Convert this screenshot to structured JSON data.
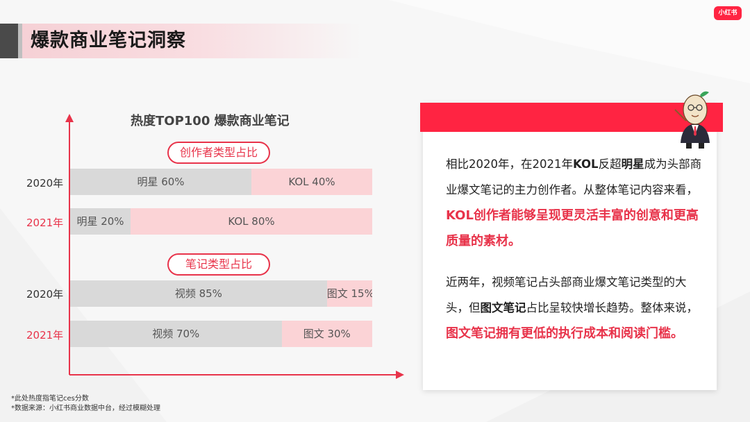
{
  "brand": {
    "logo_text": "小红书",
    "accent": "#ff2442"
  },
  "page_title": "爆款商业笔记洞察",
  "chart_data": {
    "type": "bar",
    "title": "热度TOP100 爆款商业笔记",
    "groups": [
      {
        "label": "创作者类型占比",
        "rows": [
          {
            "year": "2020年",
            "segments": [
              {
                "name": "明星",
                "value": 60,
                "label": "明星 60%"
              },
              {
                "name": "KOL",
                "value": 40,
                "label": "KOL 40%"
              }
            ]
          },
          {
            "year": "2021年",
            "segments": [
              {
                "name": "明星",
                "value": 20,
                "label": "明星 20%"
              },
              {
                "name": "KOL",
                "value": 80,
                "label": "KOL 80%"
              }
            ]
          }
        ]
      },
      {
        "label": "笔记类型占比",
        "rows": [
          {
            "year": "2020年",
            "segments": [
              {
                "name": "视频",
                "value": 85,
                "label": "视频 85%"
              },
              {
                "name": "图文",
                "value": 15,
                "label": "图文 15%"
              }
            ]
          },
          {
            "year": "2021年",
            "segments": [
              {
                "name": "视频",
                "value": 70,
                "label": "视频 70%"
              },
              {
                "name": "图文",
                "value": 30,
                "label": "图文 30%"
              }
            ]
          }
        ]
      }
    ],
    "colors": {
      "first": "#d9d9d9",
      "second": "#fbd3d6",
      "axis": "#e8334a"
    }
  },
  "footnotes": {
    "line1": "*此处热度指笔记ces分数",
    "line2": "*数据来源：小红书商业数据中台，经过模糊处理"
  },
  "insight": {
    "p1": {
      "a": "相比2020年，在2021年",
      "b": "KOL",
      "c": "反超",
      "d": "明星",
      "e": "成为头部商业爆文笔记的主力创作者。从整体笔记内容来看，",
      "f": "KOL创作者能够呈现更灵活丰富的创意和更高质量的素材。"
    },
    "p2": {
      "a": "近两年，视频笔记占头部商业爆文笔记类型的大头，但",
      "b": "图文笔记",
      "c": "占比呈较快增长趋势。整体来说，",
      "d": "图文笔记拥有更低的执行成本和阅读门槛。"
    }
  }
}
